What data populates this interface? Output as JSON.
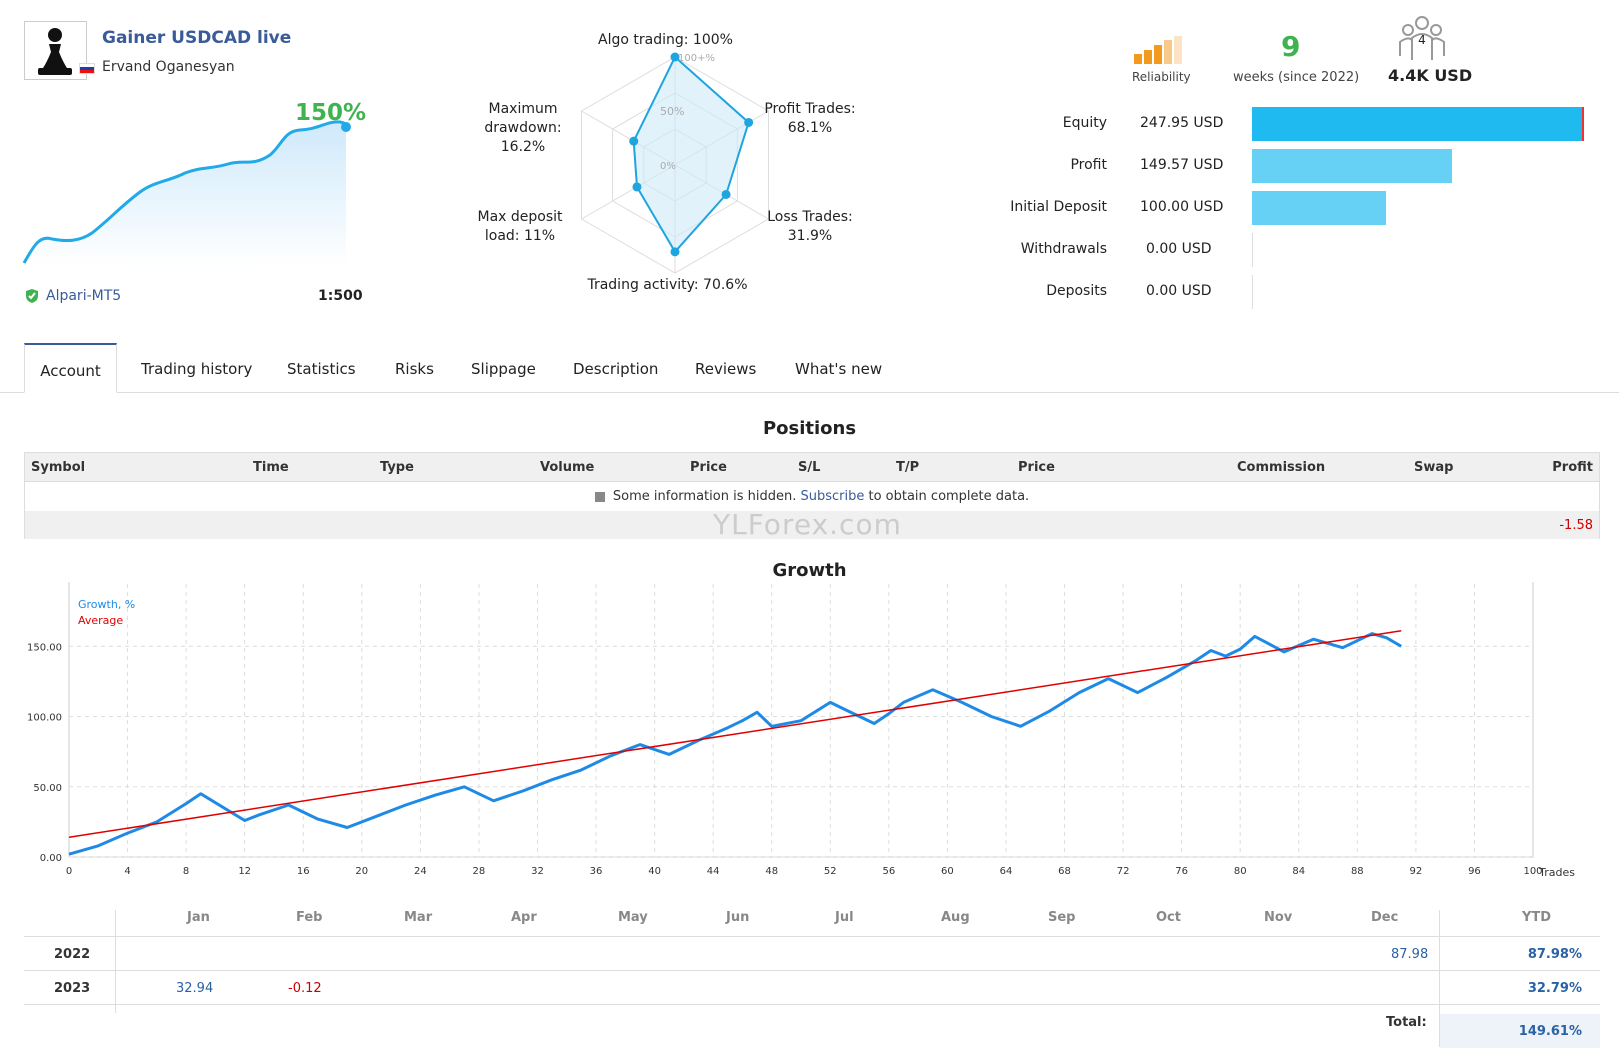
{
  "header": {
    "title": "Gainer USDCAD live",
    "author": "Ervand Oganesyan",
    "growth": "150%",
    "broker": "Alpari-MT5",
    "leverage": "1:500"
  },
  "radar": {
    "labels": {
      "algo": "Algo trading: 100%",
      "profit1": "Profit Trades:",
      "profit2": "68.1%",
      "loss1": "Loss Trades:",
      "loss2": "31.9%",
      "activity": "Trading activity: 70.6%",
      "deposit1": "Max deposit",
      "deposit2": "load: 11%",
      "drawdown1": "Maximum",
      "drawdown2": "drawdown:",
      "drawdown3": "16.2%"
    },
    "scale": [
      "100+%",
      "50%",
      "0%"
    ],
    "values": {
      "algo": 100,
      "profit": 68.1,
      "loss": 31.9,
      "activity": 70.6,
      "deposit": 11,
      "drawdown": 16.2
    }
  },
  "stats": {
    "reliability_label": "Reliability",
    "weeks": "9",
    "weeks_label": "weeks (since 2022)",
    "subscribers": "4",
    "subscribers_label": "4.4K USD"
  },
  "balance": [
    {
      "label": "Equity",
      "value": "247.95 USD",
      "amount": 247.95,
      "color": "#1ebaf0"
    },
    {
      "label": "Profit",
      "value": "149.57 USD",
      "amount": 149.57,
      "color": "#66d0f5"
    },
    {
      "label": "Initial Deposit",
      "value": "100.00 USD",
      "amount": 100.0,
      "color": "#66d0f5"
    },
    {
      "label": "Withdrawals",
      "value": "0.00 USD",
      "amount": 0,
      "color": "#66d0f5"
    },
    {
      "label": "Deposits",
      "value": "0.00 USD",
      "amount": 0,
      "color": "#66d0f5"
    }
  ],
  "tabs": [
    "Account",
    "Trading history",
    "Statistics",
    "Risks",
    "Slippage",
    "Description",
    "Reviews",
    "What's new"
  ],
  "positions": {
    "title": "Positions",
    "columns": [
      "Symbol",
      "Time",
      "Type",
      "Volume",
      "Price",
      "S/L",
      "T/P",
      "Price",
      "Commission",
      "Swap",
      "Profit"
    ],
    "hidden_pre": "Some information is hidden.",
    "hidden_link": "Subscribe",
    "hidden_post": "to obtain complete data.",
    "total_profit": "-1.58"
  },
  "watermark": "YLForex.com",
  "growth": {
    "title": "Growth",
    "legend_growth": "Growth, %",
    "legend_average": "Average",
    "xlabel": "Trades"
  },
  "chart_data": {
    "type": "line",
    "title": "Growth",
    "xlabel": "Trades",
    "ylabel": "",
    "xlim": [
      0,
      100
    ],
    "ylim": [
      0,
      200
    ],
    "yticks": [
      "0.00",
      "50.00",
      "100.00",
      "150.00",
      "200.00"
    ],
    "xticks": [
      0,
      4,
      8,
      12,
      16,
      20,
      24,
      28,
      32,
      36,
      40,
      44,
      48,
      52,
      56,
      60,
      64,
      68,
      72,
      76,
      80,
      84,
      88,
      92,
      96,
      100
    ],
    "series": [
      {
        "name": "Growth, %",
        "color": "#1e8ae6",
        "x": [
          0,
          2,
          4,
          6,
          8,
          9,
          12,
          13,
          15,
          17,
          19,
          21,
          23,
          25,
          27,
          29,
          31,
          33,
          35,
          37,
          39,
          41,
          43,
          45,
          46,
          47,
          48,
          50,
          52,
          53,
          55,
          56,
          57,
          59,
          61,
          63,
          65,
          67,
          69,
          71,
          73,
          75,
          77,
          78,
          79,
          80,
          81,
          83,
          85,
          87,
          89,
          90,
          91
        ],
        "y": [
          2,
          8,
          17,
          25,
          38,
          45,
          26,
          30,
          37,
          27,
          21,
          29,
          37,
          44,
          50,
          40,
          47,
          55,
          62,
          72,
          80,
          73,
          83,
          92,
          97,
          103,
          93,
          97,
          110,
          105,
          95,
          102,
          110,
          119,
          110,
          100,
          93,
          104,
          117,
          127,
          117,
          128,
          140,
          147,
          143,
          148,
          157,
          146,
          155,
          149,
          159,
          156,
          150
        ]
      },
      {
        "name": "Average",
        "color": "#e00000",
        "x": [
          0,
          91
        ],
        "y": [
          14,
          161
        ]
      }
    ]
  },
  "months": {
    "headers": [
      "Jan",
      "Feb",
      "Mar",
      "Apr",
      "May",
      "Jun",
      "Jul",
      "Aug",
      "Sep",
      "Oct",
      "Nov",
      "Dec",
      "YTD"
    ],
    "rows": [
      {
        "year": "2022",
        "dec": "87.98",
        "ytd": "87.98%"
      },
      {
        "year": "2023",
        "jan": "32.94",
        "feb": "-0.12",
        "ytd": "32.79%"
      }
    ],
    "total_label": "Total:",
    "total_value": "149.61%"
  }
}
